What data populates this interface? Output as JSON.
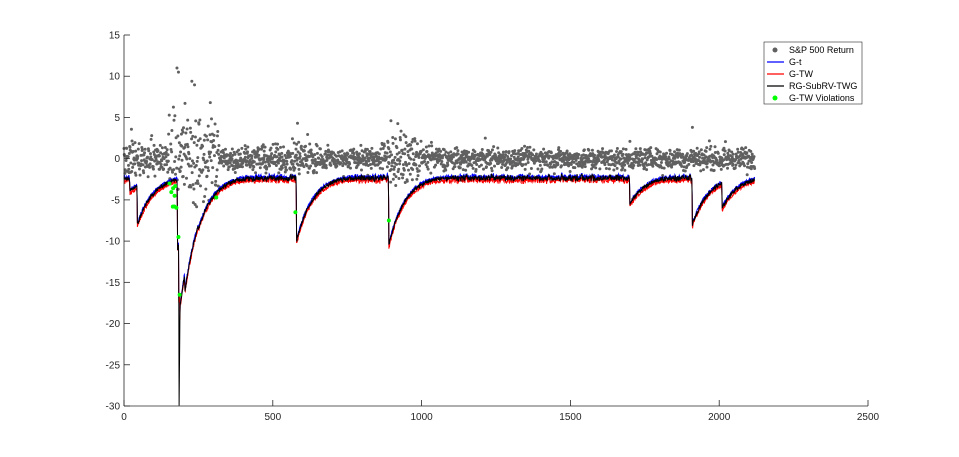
{
  "chart_data": {
    "type": "line",
    "title": "",
    "xlabel": "",
    "ylabel": "",
    "xlim": [
      0,
      2500
    ],
    "ylim": [
      -30,
      15
    ],
    "xticks": [
      0,
      500,
      1000,
      1500,
      2000,
      2500
    ],
    "yticks": [
      -30,
      -25,
      -20,
      -15,
      -10,
      -5,
      0,
      5,
      10,
      15
    ],
    "grid": false,
    "legend_placement": "top-right",
    "n_obs": 2120,
    "series": [
      {
        "name": "S&P 500 Return",
        "kind": "scatter",
        "color": "#606060"
      },
      {
        "name": "G-t",
        "kind": "line",
        "color": "#0000ff"
      },
      {
        "name": "G-TW",
        "kind": "line",
        "color": "#ff0000"
      },
      {
        "name": "RG-SubRV-TWG",
        "kind": "line",
        "color": "#000000"
      },
      {
        "name": "G-TW Violations",
        "kind": "scatter",
        "color": "#00ff00"
      }
    ],
    "var_level_profile": {
      "baseline": -2.0,
      "shocks": [
        {
          "x": 20,
          "level": -4.0
        },
        {
          "x": 45,
          "level": -8.0
        },
        {
          "x": 180,
          "level": -11.0
        },
        {
          "x": 185,
          "level": -30.0
        },
        {
          "x": 190,
          "level": -17.5
        },
        {
          "x": 205,
          "level": -16.0
        },
        {
          "x": 250,
          "level": -8.5
        },
        {
          "x": 580,
          "level": -10.0
        },
        {
          "x": 890,
          "level": -10.5
        },
        {
          "x": 1700,
          "level": -5.5
        },
        {
          "x": 1910,
          "level": -8.0
        },
        {
          "x": 2010,
          "level": -6.0
        }
      ]
    },
    "return_ranges": [
      {
        "from": 0,
        "to": 150,
        "min": -3,
        "max": 4
      },
      {
        "from": 150,
        "to": 320,
        "min": -8,
        "max": 11
      },
      {
        "from": 320,
        "to": 560,
        "min": -3,
        "max": 2.5
      },
      {
        "from": 560,
        "to": 650,
        "min": -3.5,
        "max": 4.5
      },
      {
        "from": 650,
        "to": 860,
        "min": -2.5,
        "max": 2
      },
      {
        "from": 860,
        "to": 1000,
        "min": -5,
        "max": 4.5
      },
      {
        "from": 1000,
        "to": 2120,
        "min": -2.5,
        "max": 2.5
      }
    ]
  }
}
